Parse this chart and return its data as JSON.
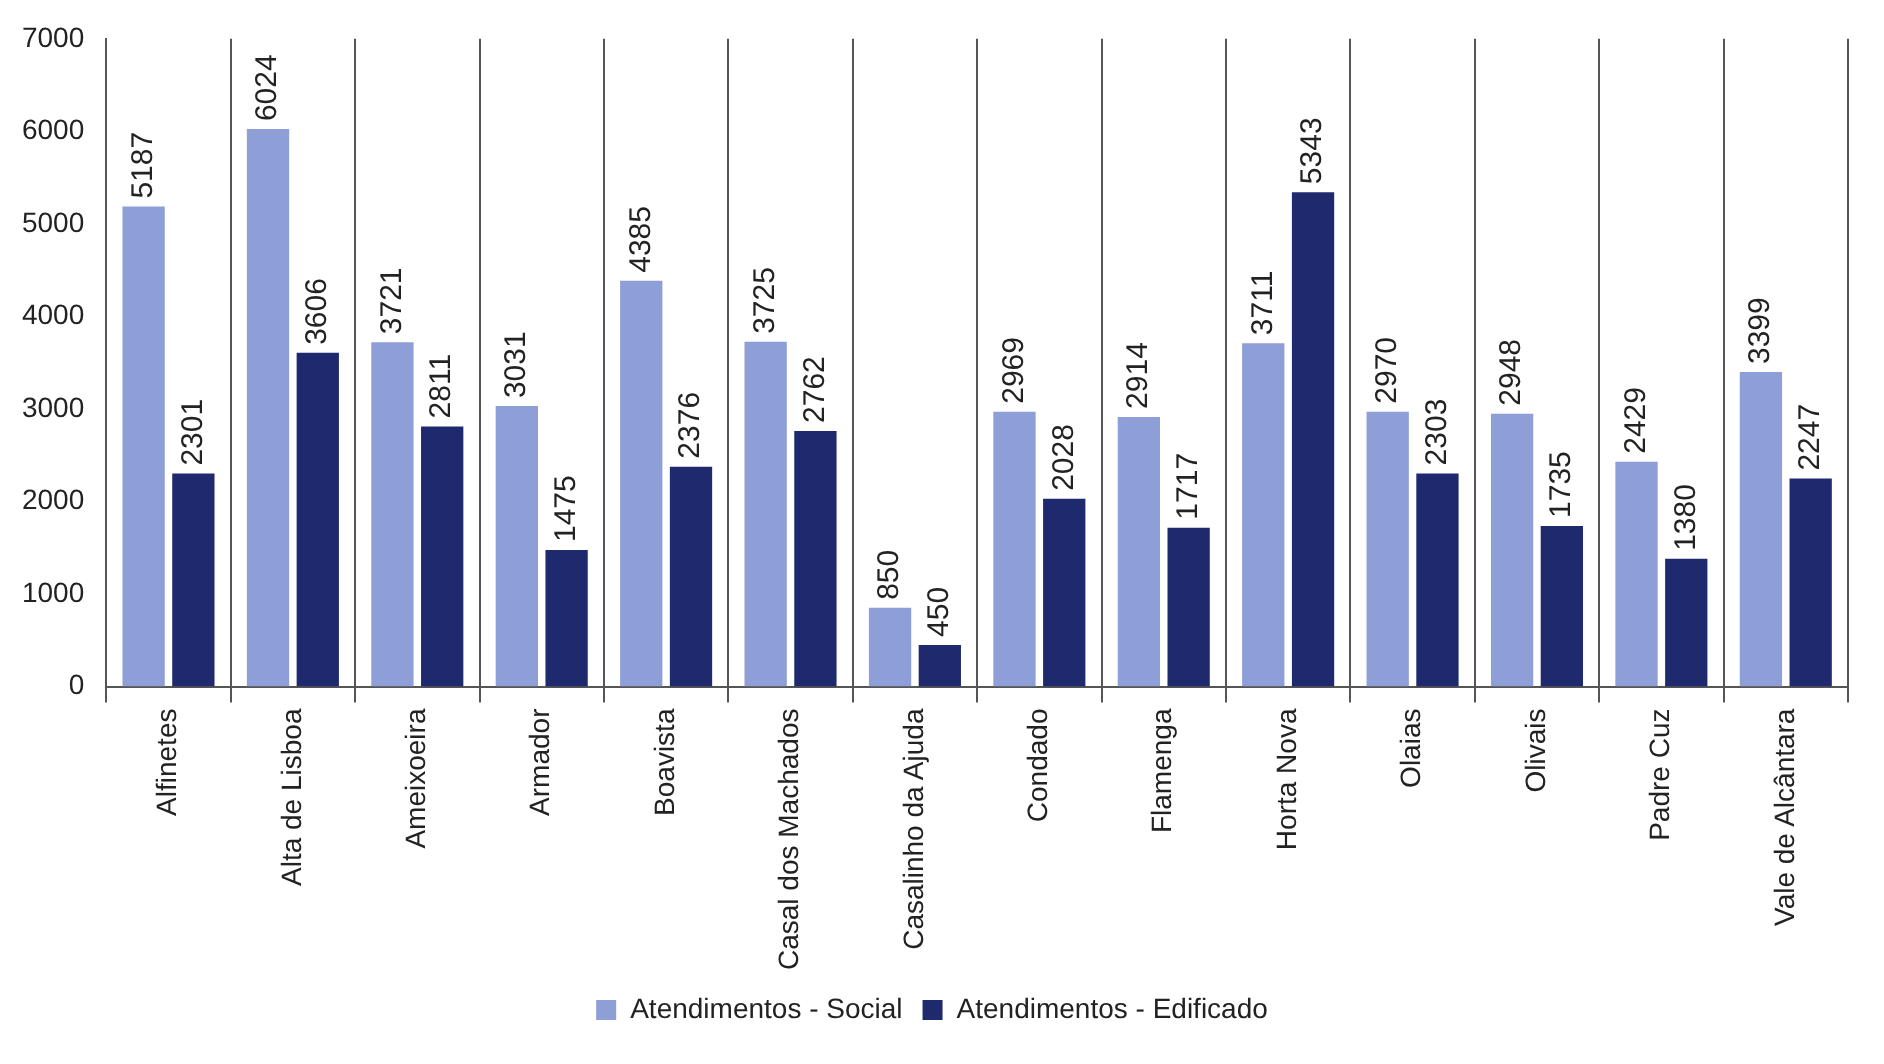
{
  "chart_data": {
    "type": "bar",
    "categories": [
      "Alfinetes",
      "Alta de Lisboa",
      "Ameixoeira",
      "Armador",
      "Boavista",
      "Casal dos Machados",
      "Casalinho da Ajuda",
      "Condado",
      "Flamenga",
      "Horta Nova",
      "Olaias",
      "Olivais",
      "Padre Cuz",
      "Vale de Alcântara"
    ],
    "series": [
      {
        "name": "Atendimentos - Social",
        "color": "#8e9ed6",
        "values": [
          5187,
          6024,
          3721,
          3031,
          4385,
          3725,
          850,
          2969,
          2914,
          3711,
          2970,
          2948,
          2429,
          3399
        ]
      },
      {
        "name": "Atendimentos - Edificado",
        "color": "#1f2a6e",
        "values": [
          2301,
          3606,
          2811,
          1475,
          2376,
          2762,
          450,
          2028,
          1717,
          5343,
          2303,
          1735,
          1380,
          2247
        ]
      }
    ],
    "ylim": [
      0,
      7000
    ],
    "yticks": [
      0,
      1000,
      2000,
      3000,
      4000,
      5000,
      6000,
      7000
    ],
    "grid": "x",
    "legend": "bottom",
    "data_labels": true
  }
}
